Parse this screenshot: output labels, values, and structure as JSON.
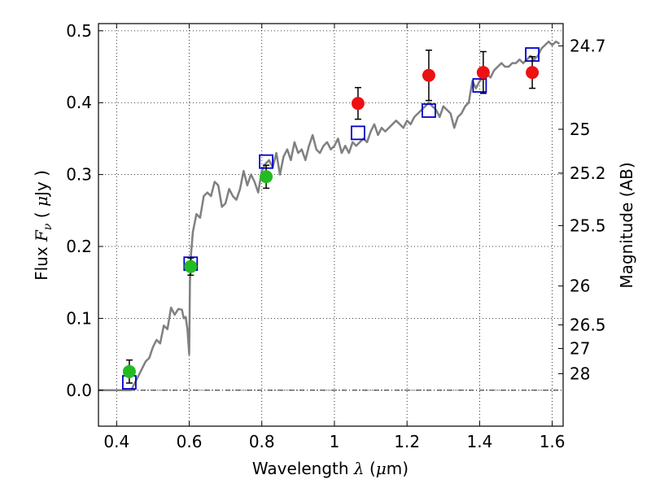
{
  "chart_data": {
    "type": "scatter",
    "xlabel": "Wavelength  λ (μm)",
    "ylabel": "Flux  F_ν  ( μJy )",
    "y2label": "Magnitude (AB)",
    "xlim": [
      0.35,
      1.63
    ],
    "ylim": [
      -0.05,
      0.51
    ],
    "grid": true,
    "x_ticks": [
      0.4,
      0.6,
      0.8,
      1.0,
      1.2,
      1.4,
      1.6
    ],
    "x_tick_labels": [
      "0.4",
      "0.6",
      "0.8",
      "1",
      "1.2",
      "1.4",
      "1.6"
    ],
    "y_ticks": [
      0.0,
      0.1,
      0.2,
      0.3,
      0.4,
      0.5
    ],
    "y_tick_labels": [
      "0.0",
      "0.1",
      "0.2",
      "0.3",
      "0.4",
      "0.5"
    ],
    "y2_ticks": [
      {
        "label": "24.7",
        "flux": 0.479
      },
      {
        "label": "25",
        "flux": 0.363
      },
      {
        "label": "25.2",
        "flux": 0.302
      },
      {
        "label": "25.5",
        "flux": 0.229
      },
      {
        "label": "26",
        "flux": 0.145
      },
      {
        "label": "26.5",
        "flux": 0.091
      },
      {
        "label": "27",
        "flux": 0.058
      },
      {
        "label": "28",
        "flux": 0.023
      }
    ],
    "zero_line": 0.0,
    "series": [
      {
        "kind": "line",
        "color": "#808080",
        "points": [
          [
            0.35,
            0.0
          ],
          [
            0.44,
            0.0
          ],
          [
            0.46,
            0.02
          ],
          [
            0.48,
            0.04
          ],
          [
            0.49,
            0.045
          ],
          [
            0.5,
            0.06
          ],
          [
            0.51,
            0.07
          ],
          [
            0.52,
            0.065
          ],
          [
            0.53,
            0.09
          ],
          [
            0.54,
            0.085
          ],
          [
            0.55,
            0.115
          ],
          [
            0.56,
            0.105
          ],
          [
            0.57,
            0.113
          ],
          [
            0.58,
            0.112
          ],
          [
            0.585,
            0.1
          ],
          [
            0.59,
            0.102
          ],
          [
            0.595,
            0.085
          ],
          [
            0.6,
            0.05
          ],
          [
            0.602,
            0.15
          ],
          [
            0.605,
            0.19
          ],
          [
            0.61,
            0.22
          ],
          [
            0.62,
            0.245
          ],
          [
            0.63,
            0.24
          ],
          [
            0.64,
            0.27
          ],
          [
            0.65,
            0.275
          ],
          [
            0.66,
            0.27
          ],
          [
            0.67,
            0.29
          ],
          [
            0.68,
            0.285
          ],
          [
            0.69,
            0.255
          ],
          [
            0.7,
            0.26
          ],
          [
            0.71,
            0.28
          ],
          [
            0.72,
            0.27
          ],
          [
            0.73,
            0.265
          ],
          [
            0.74,
            0.28
          ],
          [
            0.75,
            0.305
          ],
          [
            0.76,
            0.285
          ],
          [
            0.77,
            0.3
          ],
          [
            0.78,
            0.29
          ],
          [
            0.79,
            0.275
          ],
          [
            0.8,
            0.305
          ],
          [
            0.81,
            0.315
          ],
          [
            0.82,
            0.32
          ],
          [
            0.83,
            0.31
          ],
          [
            0.84,
            0.33
          ],
          [
            0.85,
            0.3
          ],
          [
            0.86,
            0.325
          ],
          [
            0.87,
            0.335
          ],
          [
            0.88,
            0.32
          ],
          [
            0.89,
            0.345
          ],
          [
            0.9,
            0.33
          ],
          [
            0.91,
            0.335
          ],
          [
            0.92,
            0.32
          ],
          [
            0.93,
            0.34
          ],
          [
            0.94,
            0.355
          ],
          [
            0.95,
            0.335
          ],
          [
            0.96,
            0.33
          ],
          [
            0.97,
            0.34
          ],
          [
            0.98,
            0.345
          ],
          [
            0.99,
            0.335
          ],
          [
            1.0,
            0.34
          ],
          [
            1.01,
            0.35
          ],
          [
            1.02,
            0.33
          ],
          [
            1.03,
            0.34
          ],
          [
            1.04,
            0.33
          ],
          [
            1.05,
            0.345
          ],
          [
            1.06,
            0.34
          ],
          [
            1.07,
            0.345
          ],
          [
            1.08,
            0.35
          ],
          [
            1.09,
            0.345
          ],
          [
            1.1,
            0.36
          ],
          [
            1.11,
            0.37
          ],
          [
            1.12,
            0.355
          ],
          [
            1.13,
            0.365
          ],
          [
            1.14,
            0.36
          ],
          [
            1.15,
            0.365
          ],
          [
            1.16,
            0.37
          ],
          [
            1.17,
            0.375
          ],
          [
            1.18,
            0.37
          ],
          [
            1.19,
            0.365
          ],
          [
            1.2,
            0.375
          ],
          [
            1.21,
            0.37
          ],
          [
            1.22,
            0.38
          ],
          [
            1.23,
            0.385
          ],
          [
            1.24,
            0.39
          ],
          [
            1.25,
            0.395
          ],
          [
            1.26,
            0.4
          ],
          [
            1.27,
            0.395
          ],
          [
            1.28,
            0.39
          ],
          [
            1.29,
            0.38
          ],
          [
            1.3,
            0.395
          ],
          [
            1.31,
            0.39
          ],
          [
            1.32,
            0.385
          ],
          [
            1.33,
            0.365
          ],
          [
            1.34,
            0.38
          ],
          [
            1.35,
            0.385
          ],
          [
            1.36,
            0.395
          ],
          [
            1.37,
            0.4
          ],
          [
            1.38,
            0.43
          ],
          [
            1.39,
            0.42
          ],
          [
            1.4,
            0.43
          ],
          [
            1.41,
            0.435
          ],
          [
            1.42,
            0.44
          ],
          [
            1.43,
            0.435
          ],
          [
            1.44,
            0.445
          ],
          [
            1.45,
            0.45
          ],
          [
            1.46,
            0.455
          ],
          [
            1.47,
            0.45
          ],
          [
            1.48,
            0.45
          ],
          [
            1.49,
            0.455
          ],
          [
            1.5,
            0.455
          ],
          [
            1.51,
            0.46
          ],
          [
            1.52,
            0.455
          ],
          [
            1.53,
            0.46
          ],
          [
            1.54,
            0.465
          ],
          [
            1.55,
            0.46
          ],
          [
            1.56,
            0.465
          ],
          [
            1.57,
            0.475
          ],
          [
            1.58,
            0.48
          ],
          [
            1.59,
            0.485
          ],
          [
            1.6,
            0.48
          ],
          [
            1.61,
            0.485
          ],
          [
            1.62,
            0.482
          ]
        ]
      },
      {
        "kind": "open_squares",
        "color": "#0000cc",
        "x": [
          0.435,
          0.604,
          0.812,
          1.065,
          1.26,
          1.4,
          1.545
        ],
        "y": [
          0.011,
          0.176,
          0.318,
          0.358,
          0.389,
          0.424,
          0.467
        ]
      },
      {
        "kind": "filled_circles",
        "color": "#22bb22",
        "x": [
          0.435,
          0.604,
          0.812
        ],
        "y": [
          0.026,
          0.172,
          0.297
        ],
        "err": [
          0.016,
          0.012,
          0.016
        ]
      },
      {
        "kind": "filled_circles",
        "color": "#ee1111",
        "x": [
          1.065,
          1.26,
          1.41,
          1.545
        ],
        "y": [
          0.399,
          0.438,
          0.442,
          0.442
        ],
        "err": [
          0.022,
          0.035,
          0.029,
          0.022
        ]
      }
    ]
  }
}
